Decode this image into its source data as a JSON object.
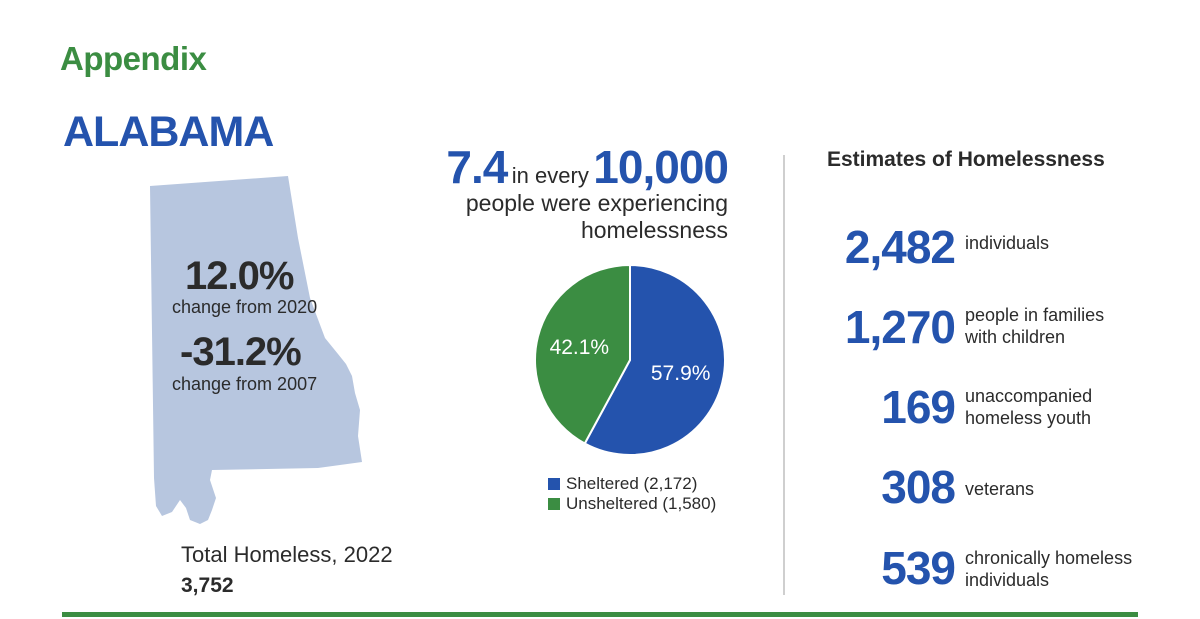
{
  "header": {
    "appendix": "Appendix",
    "state": "ALABAMA"
  },
  "left": {
    "change_2020_value": "12.0%",
    "change_2020_label": "change from 2020",
    "change_2007_value": "-31.2%",
    "change_2007_label": "change from 2007",
    "total_label": "Total Homeless, 2022",
    "total_value": "3,752"
  },
  "rate": {
    "value": "7.4",
    "connector": "in every",
    "base": "10,000",
    "desc_line1": "people were experiencing",
    "desc_line2": "homelessness"
  },
  "chart_data": {
    "type": "pie",
    "slices": [
      {
        "label": "Sheltered (2,172)",
        "value": 57.9,
        "display": "57.9%",
        "color": "#2453ad"
      },
      {
        "label": "Unsheltered (1,580)",
        "value": 42.1,
        "display": "42.1%",
        "color": "#3b8d42"
      }
    ]
  },
  "estimates": {
    "title": "Estimates of Homelessness",
    "items": [
      {
        "value": "2,482",
        "label": "individuals"
      },
      {
        "value": "1,270",
        "label": "people in families with children"
      },
      {
        "value": "169",
        "label": "unaccompanied homeless youth"
      },
      {
        "value": "308",
        "label": "veterans"
      },
      {
        "value": "539",
        "label": "chronically homeless individuals"
      }
    ]
  },
  "colors": {
    "green": "#3b8d42",
    "blue": "#2453ad",
    "map": "#b7c6df"
  }
}
